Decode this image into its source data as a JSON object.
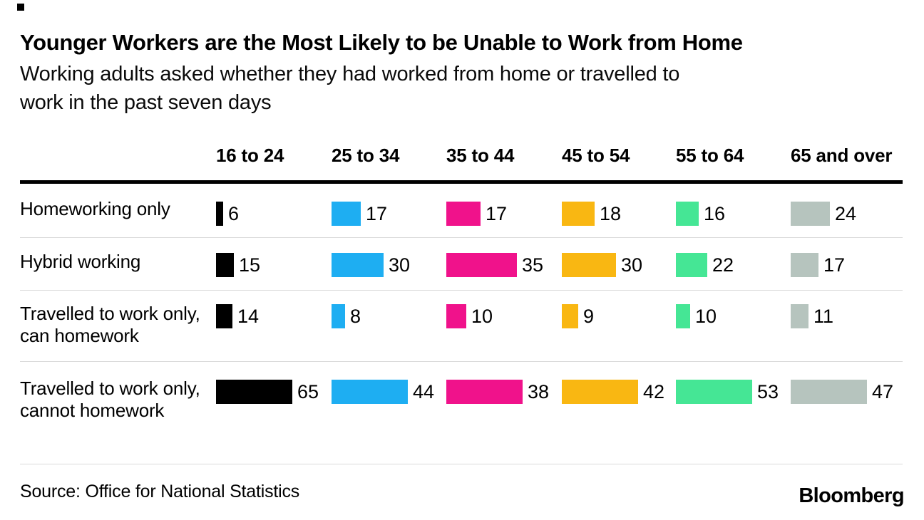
{
  "header": {
    "title": "Younger Workers are the Most Likely to be Unable to Work from Home",
    "subtitle": "Working adults asked whether they had worked from home or travelled to work in the past seven days",
    "subtitle_lines": [
      "Working adults asked whether they had worked from home or travelled to",
      "work in the past seven days"
    ]
  },
  "table": {
    "columns": [
      {
        "label": "16 to 24",
        "color": "#000000"
      },
      {
        "label": "25 to 34",
        "color": "#1EAEF2"
      },
      {
        "label": "35 to 44",
        "color": "#F0128B"
      },
      {
        "label": "45 to 54",
        "color": "#F9B712"
      },
      {
        "label": "55 to 64",
        "color": "#45E695"
      },
      {
        "label": "65 and over",
        "color": "#B6C4BE"
      }
    ],
    "rows": [
      {
        "label": "Homeworking only",
        "values": [
          6,
          17,
          17,
          18,
          16,
          24
        ]
      },
      {
        "label": "Hybrid working",
        "values": [
          15,
          30,
          35,
          30,
          22,
          17
        ]
      },
      {
        "label": "Travelled to work only, can homework",
        "values": [
          14,
          8,
          10,
          9,
          10,
          11
        ]
      },
      {
        "label": "Travelled to work only, cannot homework",
        "values": [
          65,
          44,
          38,
          42,
          53,
          47
        ]
      }
    ]
  },
  "footer": {
    "source": "Source: Office for National Statistics",
    "logo": "Bloomberg"
  },
  "chart_data": {
    "type": "bar",
    "title": "Younger Workers are the Most Likely to be Unable to Work from Home",
    "subtitle": "Working adults asked whether they had worked from home or travelled to work in the past seven days",
    "categories": [
      "16 to 24",
      "25 to 34",
      "35 to 44",
      "45 to 54",
      "55 to 64",
      "65 and over"
    ],
    "series": [
      {
        "name": "Homeworking only",
        "values": [
          6,
          17,
          17,
          18,
          16,
          24
        ],
        "color": "varies-by-category"
      },
      {
        "name": "Hybrid working",
        "values": [
          15,
          30,
          35,
          30,
          22,
          17
        ],
        "color": "varies-by-category"
      },
      {
        "name": "Travelled to work only, can homework",
        "values": [
          14,
          8,
          10,
          9,
          10,
          11
        ],
        "color": "varies-by-category"
      },
      {
        "name": "Travelled to work only, cannot homework",
        "values": [
          65,
          44,
          38,
          42,
          53,
          47
        ],
        "color": "varies-by-category"
      }
    ],
    "category_colors": [
      "#000000",
      "#1EAEF2",
      "#F0128B",
      "#F9B712",
      "#45E695",
      "#B6C4BE"
    ],
    "orientation": "horizontal",
    "bar_scaling": "each column of bars is normalized to the column maximum",
    "data_labels": true,
    "grid": false,
    "legend": "none",
    "source": "Source: Office for National Statistics"
  }
}
